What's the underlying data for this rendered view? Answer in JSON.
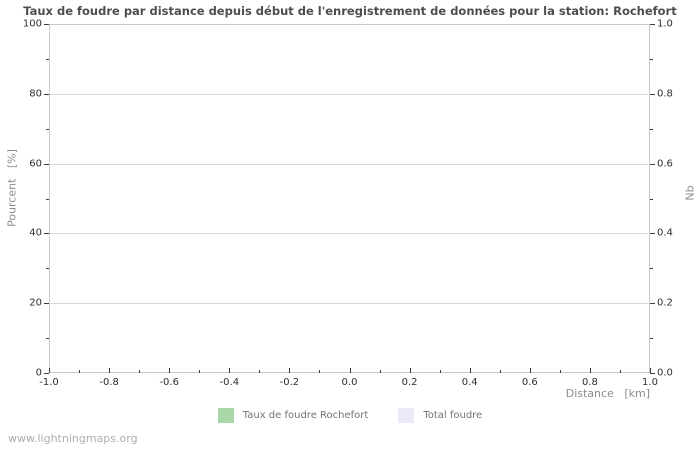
{
  "title": "Taux de foudre par distance depuis début de l'enregistrement de données pour la station: Rochefort",
  "watermark": "www.lightningmaps.org",
  "colors": {
    "title": "#4d4d4d",
    "tick_label": "#2e2e2e",
    "axis_label": "#8c8c8c",
    "frame": "#c8c8c8",
    "grid": "#d6d6d6",
    "tick": "#3d3d3d",
    "legend_text": "#737373",
    "watermark": "#aeaeae",
    "series_rate": "#a8d8a8",
    "series_total": "#e9e9f8"
  },
  "chart_data": {
    "type": "bar",
    "title": "Taux de foudre par distance depuis début de l'enregistrement de données pour la station: Rochefort",
    "xlabel": "Distance   [km]",
    "ylabel_left": "Pourcent   [%]",
    "ylabel_right": "Nb",
    "xlim": [
      -1.0,
      1.0
    ],
    "ylim_left": [
      0,
      100
    ],
    "ylim_right": [
      0.0,
      1.0
    ],
    "x_ticks": [
      "-1.0",
      "-0.8",
      "-0.6",
      "-0.4",
      "-0.2",
      "0.0",
      "0.2",
      "0.4",
      "0.6",
      "0.8",
      "1.0"
    ],
    "y_ticks_left": [
      "0",
      "20",
      "40",
      "60",
      "80",
      "100"
    ],
    "y_ticks_right": [
      "0.0",
      "0.2",
      "0.4",
      "0.6",
      "0.8",
      "1.0"
    ],
    "grid": "horizontal-major-only",
    "legend_position": "bottom-center",
    "series": [
      {
        "name": "Taux de foudre Rochefort",
        "color": "#a8d8a8",
        "values": []
      },
      {
        "name": "Total foudre",
        "color": "#e9e9f8",
        "values": []
      }
    ]
  }
}
